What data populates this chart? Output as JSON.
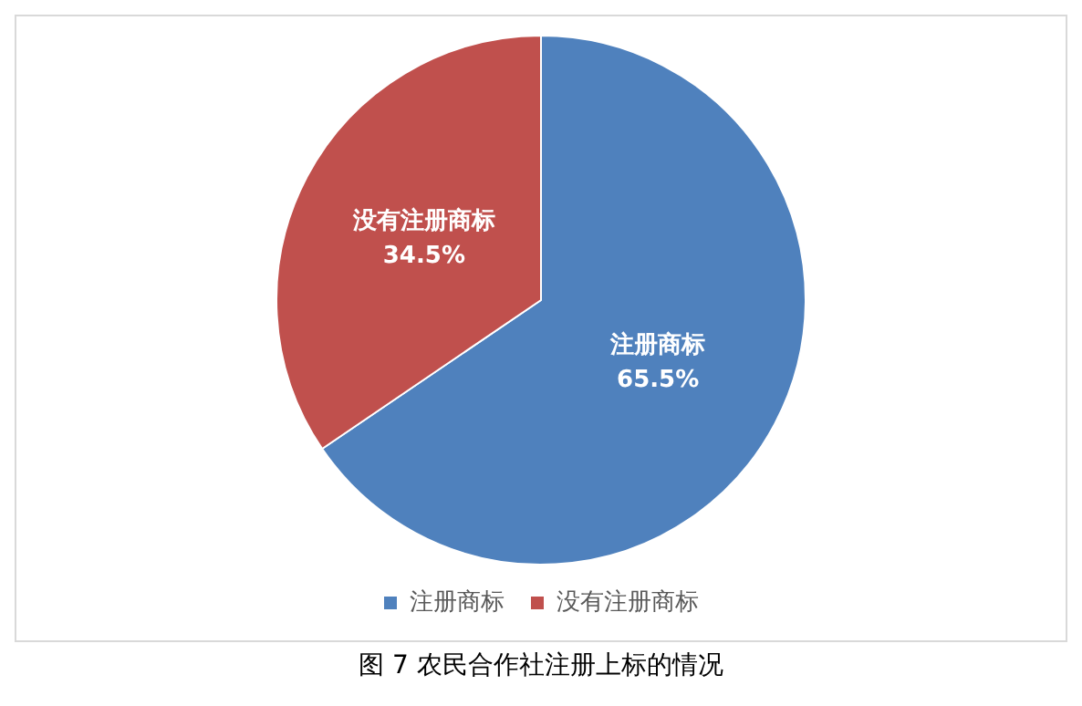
{
  "chart_data": {
    "type": "pie",
    "categories": [
      "注册商标",
      "没有注册商标"
    ],
    "values": [
      65.5,
      34.5
    ],
    "colors": [
      "#4f81bd",
      "#c0504d"
    ],
    "value_labels": [
      "65.5%",
      "34.5%"
    ],
    "legend": "bottom",
    "annotations": [
      "图 7 农民合作社注册上标的情况"
    ]
  }
}
